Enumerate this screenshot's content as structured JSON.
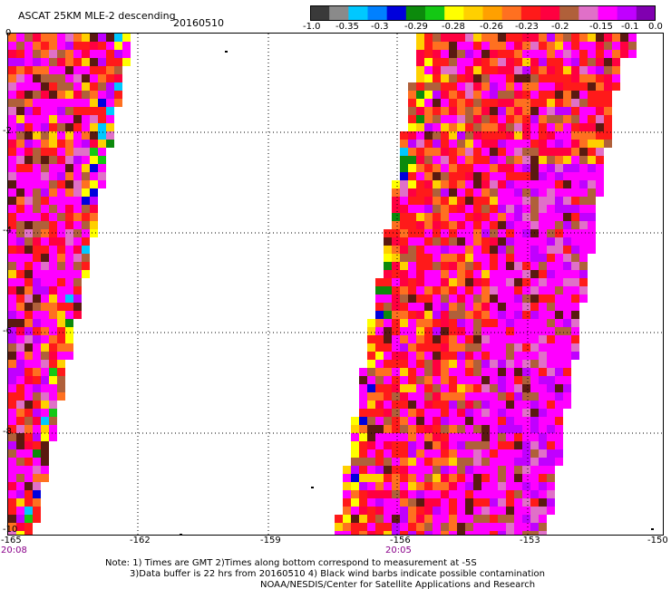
{
  "title": "ASCAT 25KM MLE-2 descending",
  "date": "20160510",
  "colorbar": {
    "colors": [
      "#3a3a3a",
      "#8a8a8a",
      "#00c8ff",
      "#0080ff",
      "#0000dc",
      "#0c8a0c",
      "#14c814",
      "#ffff00",
      "#ffd000",
      "#ffa000",
      "#ff7020",
      "#ff1a1a",
      "#ff0040",
      "#b0603a",
      "#e070c8",
      "#ff00ff",
      "#c000ff",
      "#8000b0"
    ],
    "labels": [
      "-1.0",
      "-0.35",
      "-0.3",
      "-0.29",
      "-0.28",
      "-0.26",
      "-0.23",
      "-0.2",
      "-0.15",
      "-0.1",
      "0.0"
    ]
  },
  "axes": {
    "x_labels": [
      "-165",
      "-162",
      "-159",
      "-156",
      "-153",
      "-150"
    ],
    "y_labels": [
      "0",
      "-2",
      "-4",
      "-6",
      "-8",
      "-10"
    ]
  },
  "time_labels": [
    "20:08",
    "20:05"
  ],
  "notes": [
    "Note: 1) Times are GMT 2)Times along bottom correspond to measurement at -5S",
    "3)Data buffer is 22 hrs from 20160510 4) Black wind barbs indicate possible contamination",
    "NOAA/NESDIS/Center for Satellite Applications and Research"
  ]
}
